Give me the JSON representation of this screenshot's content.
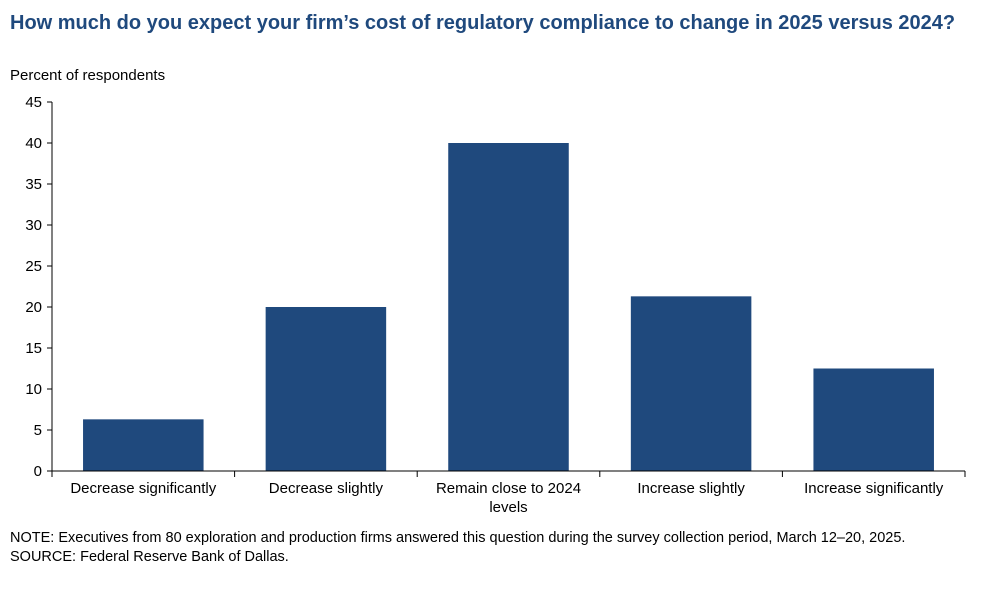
{
  "title": "How much do you expect your firm’s cost of regulatory compliance to change in 2025 versus 2024?",
  "unit_label": "Percent of respondents",
  "note": "NOTE: Executives from 80 exploration and production firms answered this question during the survey collection period, March 12–20, 2025.",
  "source": "SOURCE: Federal Reserve Bank of Dallas.",
  "colors": {
    "bar": "#1f497d",
    "title": "#1f497d",
    "axis": "#000000"
  },
  "chart_data": {
    "type": "bar",
    "categories": [
      "Decrease significantly",
      "Decrease slightly",
      "Remain close to 2024 levels",
      "Increase slightly",
      "Increase significantly"
    ],
    "category_lines": [
      [
        "Decrease significantly"
      ],
      [
        "Decrease slightly"
      ],
      [
        "Remain close to 2024",
        "levels"
      ],
      [
        "Increase slightly"
      ],
      [
        "Increase significantly"
      ]
    ],
    "values": [
      6.3,
      20.0,
      40.0,
      21.3,
      12.5
    ],
    "ylabel": "Percent of respondents",
    "ylim": [
      0,
      45
    ],
    "yticks": [
      0,
      5,
      10,
      15,
      20,
      25,
      30,
      35,
      40,
      45
    ],
    "grid": false,
    "legend": "none"
  }
}
